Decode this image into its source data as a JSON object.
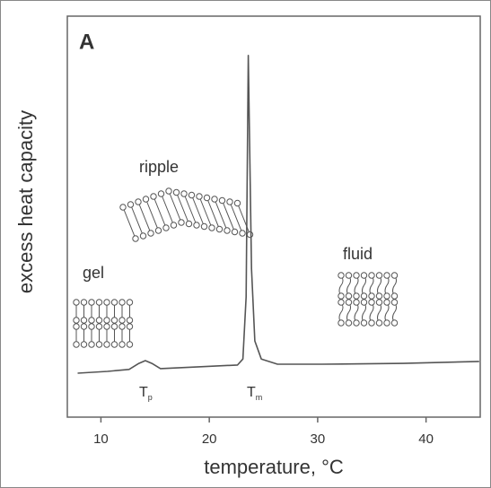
{
  "chart_data": {
    "type": "line",
    "panel_label": "A",
    "xlabel": "temperature, °C",
    "ylabel": "excess heat capacity",
    "x": [
      7.85,
      10.6,
      12.6,
      13.5,
      14.1,
      14.7,
      15.5,
      18.8,
      22.6,
      23.1,
      23.4,
      23.6,
      23.9,
      24.2,
      24.8,
      26.3,
      30.4,
      37.9,
      44.9
    ],
    "series": [
      {
        "color": "#555555",
        "values": [
          10.96,
          11.4,
          11.9,
          13.4,
          14.1,
          13.4,
          12.1,
          12.5,
          13.0,
          14.5,
          30,
          90.2,
          37,
          19,
          14.5,
          13.2,
          13.2,
          13.4,
          13.9
        ]
      }
    ],
    "xlim": [
      6.9,
      45
    ],
    "ylim": [
      0,
      100
    ],
    "xticks": [
      10,
      20,
      30,
      40
    ],
    "annotations": [
      {
        "text": "gel"
      },
      {
        "text": "ripple"
      },
      {
        "text": "fluid"
      },
      {
        "text": "T",
        "subscript": "p"
      },
      {
        "text": "T",
        "subscript": "m"
      }
    ]
  }
}
